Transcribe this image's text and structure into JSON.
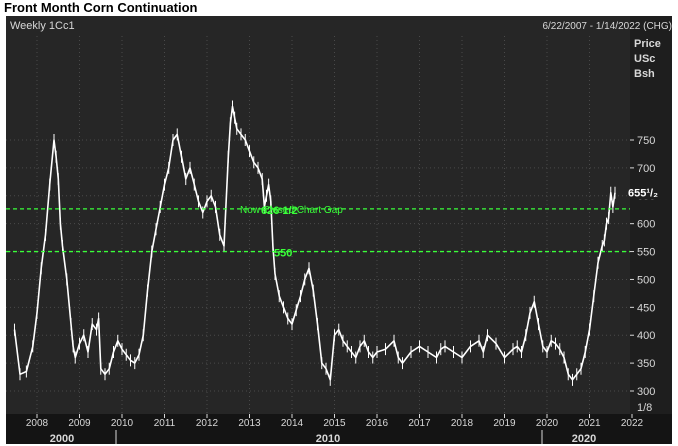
{
  "page_title": "Front Month Corn Continuation",
  "chart_data": {
    "type": "line",
    "series_label": "Weekly 1Cc1",
    "date_range": "6/22/2007 - 1/14/2022 (CHG)",
    "y_unit_lines": [
      "Price",
      "USc",
      "Bsh"
    ],
    "ylim": [
      270,
      850
    ],
    "y_ticks": [
      300,
      350,
      400,
      450,
      500,
      550,
      600,
      650,
      700,
      750
    ],
    "x_tick_labels": [
      "2008",
      "2009",
      "2010",
      "2011",
      "2012",
      "2013",
      "2014",
      "2015",
      "2016",
      "2017",
      "2018",
      "2019",
      "2020",
      "2021",
      "2022"
    ],
    "era_labels": [
      "2000",
      "2010",
      "2020"
    ],
    "last_price_label": "655¹/₂",
    "last_price": 655.5,
    "reference_lines": [
      {
        "value": 626.5,
        "label": "626 1/2"
      },
      {
        "value": 550,
        "label": "550"
      }
    ],
    "annotation": "Now Closed Chart Gap",
    "scale_note": "1/8",
    "series": [
      {
        "x": [
          2007.47,
          2007.6,
          2007.75,
          2007.9,
          2008.0,
          2008.1,
          2008.2,
          2008.3,
          2008.4,
          2008.45,
          2008.5,
          2008.55,
          2008.6,
          2008.7,
          2008.8,
          2008.85,
          2008.9,
          2009.0,
          2009.1,
          2009.2,
          2009.3,
          2009.4,
          2009.45,
          2009.5,
          2009.6,
          2009.7,
          2009.8,
          2009.9,
          2010.0,
          2010.1,
          2010.2,
          2010.3,
          2010.4,
          2010.5,
          2010.6,
          2010.7,
          2010.8,
          2010.9,
          2011.0,
          2011.1,
          2011.2,
          2011.3,
          2011.4,
          2011.5,
          2011.6,
          2011.7,
          2011.8,
          2011.9,
          2012.0,
          2012.1,
          2012.2,
          2012.3,
          2012.4,
          2012.5,
          2012.55,
          2012.6,
          2012.65,
          2012.7,
          2012.8,
          2012.9,
          2013.0,
          2013.1,
          2013.2,
          2013.3,
          2013.35,
          2013.4,
          2013.45,
          2013.5,
          2013.55,
          2013.6,
          2013.7,
          2013.8,
          2013.9,
          2014.0,
          2014.1,
          2014.2,
          2014.3,
          2014.4,
          2014.5,
          2014.6,
          2014.7,
          2014.8,
          2014.9,
          2015.0,
          2015.1,
          2015.2,
          2015.3,
          2015.4,
          2015.5,
          2015.6,
          2015.7,
          2015.8,
          2015.9,
          2016.0,
          2016.2,
          2016.4,
          2016.5,
          2016.6,
          2016.8,
          2017.0,
          2017.2,
          2017.4,
          2017.5,
          2017.6,
          2017.8,
          2018.0,
          2018.2,
          2018.4,
          2018.5,
          2018.6,
          2018.8,
          2019.0,
          2019.2,
          2019.3,
          2019.4,
          2019.5,
          2019.6,
          2019.7,
          2019.8,
          2019.9,
          2020.0,
          2020.1,
          2020.2,
          2020.3,
          2020.4,
          2020.5,
          2020.6,
          2020.7,
          2020.8,
          2020.9,
          2021.0,
          2021.1,
          2021.2,
          2021.3,
          2021.35,
          2021.4,
          2021.45,
          2021.5,
          2021.55,
          2021.6
        ],
        "values": [
          410,
          330,
          335,
          380,
          440,
          520,
          580,
          670,
          750,
          720,
          680,
          600,
          560,
          500,
          420,
          380,
          360,
          385,
          400,
          370,
          420,
          410,
          430,
          340,
          330,
          340,
          370,
          390,
          375,
          365,
          355,
          350,
          365,
          400,
          480,
          550,
          590,
          630,
          670,
          700,
          750,
          760,
          720,
          680,
          700,
          670,
          640,
          620,
          640,
          650,
          630,
          580,
          560,
          720,
          780,
          810,
          790,
          770,
          760,
          750,
          730,
          710,
          700,
          680,
          630,
          650,
          670,
          640,
          560,
          510,
          470,
          450,
          430,
          420,
          445,
          470,
          500,
          520,
          480,
          420,
          350,
          340,
          320,
          400,
          410,
          390,
          380,
          370,
          360,
          380,
          390,
          370,
          360,
          370,
          375,
          390,
          360,
          350,
          370,
          380,
          370,
          360,
          375,
          380,
          370,
          360,
          380,
          390,
          370,
          400,
          385,
          360,
          375,
          380,
          370,
          400,
          440,
          460,
          420,
          380,
          370,
          390,
          385,
          375,
          360,
          330,
          320,
          330,
          340,
          370,
          410,
          470,
          530,
          560,
          570,
          600,
          610,
          655.5,
          630,
          655.5
        ],
        "color": "#ffffff"
      }
    ]
  },
  "colors": {
    "plot_bg": "#262626",
    "axis_bg": "#1e1e1e",
    "grid": "#4a4a4a",
    "series": "#ffffff",
    "reference_line": "#39ff39",
    "axis_text": "#d8d8d8"
  }
}
